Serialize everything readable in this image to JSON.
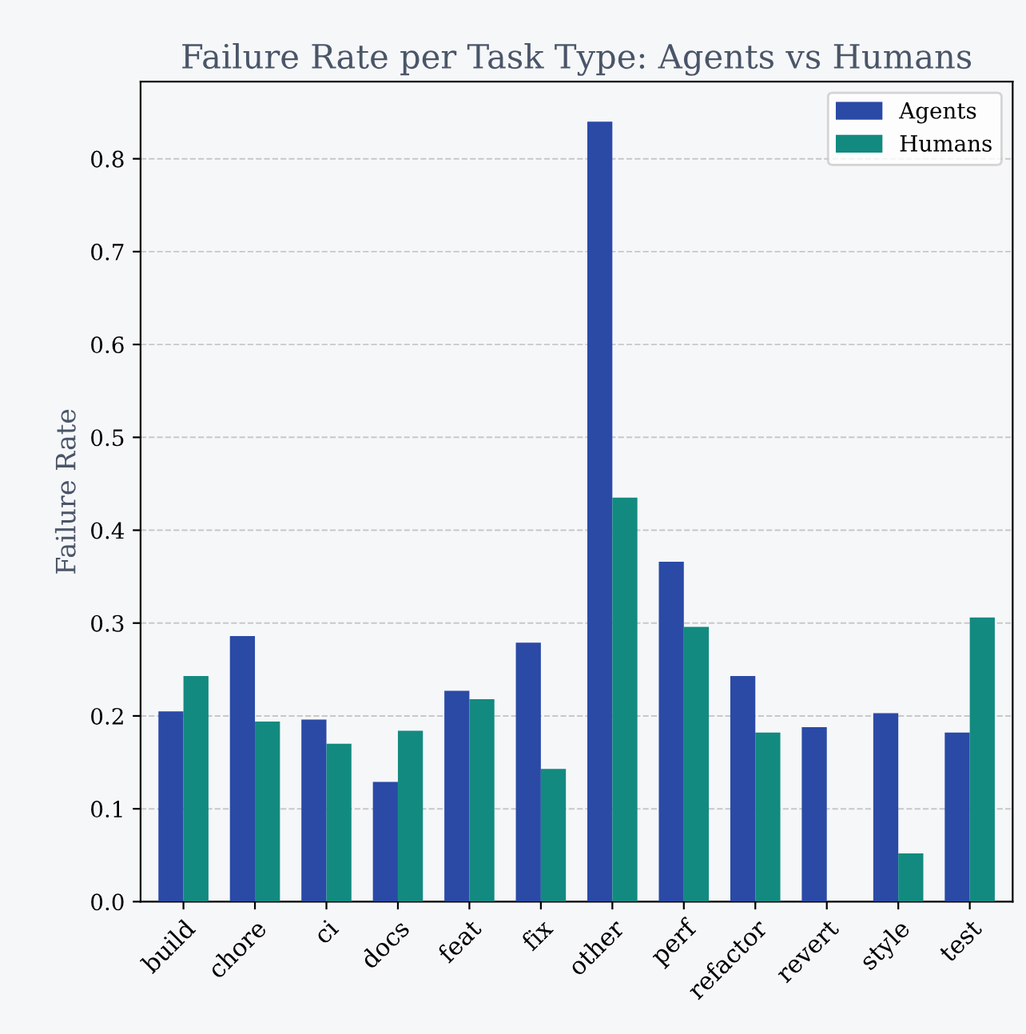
{
  "chart_data": {
    "type": "bar",
    "title": "Failure Rate per Task Type: Agents vs Humans",
    "ylabel": "Failure Rate",
    "categories": [
      "build",
      "chore",
      "ci",
      "docs",
      "feat",
      "fix",
      "other",
      "perf",
      "refactor",
      "revert",
      "style",
      "test"
    ],
    "series": [
      {
        "name": "Agents",
        "color": "#2a4aa6",
        "values": [
          0.205,
          0.286,
          0.196,
          0.129,
          0.227,
          0.279,
          0.84,
          0.366,
          0.243,
          0.188,
          0.203,
          0.182
        ]
      },
      {
        "name": "Humans",
        "color": "#138a80",
        "values": [
          0.243,
          0.194,
          0.17,
          0.184,
          0.218,
          0.143,
          0.435,
          0.296,
          0.182,
          0.0,
          0.052,
          0.306
        ]
      }
    ],
    "ylim": [
      0,
      0.883
    ],
    "yticks": [
      {
        "value": 0,
        "label": "0.0"
      },
      0.1,
      0.2,
      0.3,
      0.4,
      0.5,
      0.6,
      0.7,
      0.8
    ],
    "grid": "y",
    "legend": "top right"
  }
}
